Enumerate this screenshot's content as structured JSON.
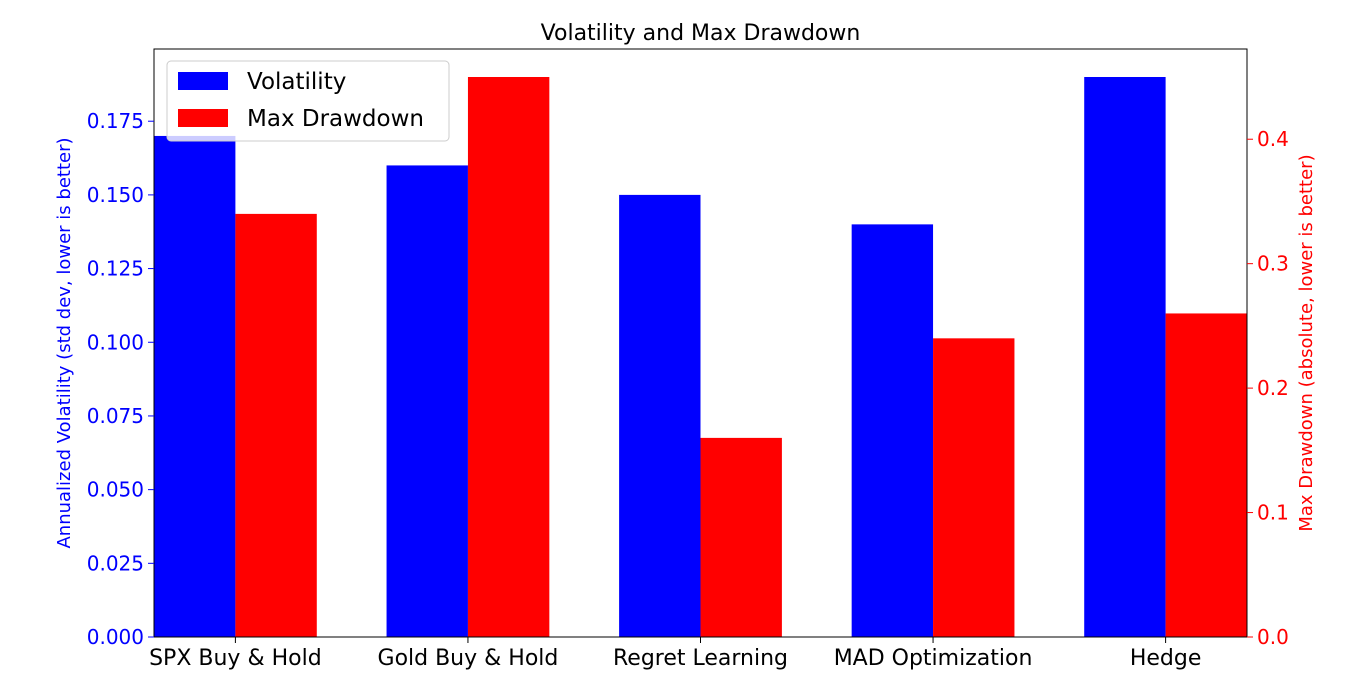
{
  "chart_data": {
    "type": "bar",
    "title": "Volatility and Max Drawdown",
    "categories": [
      "SPX Buy & Hold",
      "Gold Buy & Hold",
      "Regret Learning",
      "MAD Optimization",
      "Hedge"
    ],
    "series": [
      {
        "name": "Volatility",
        "axis": "left",
        "color": "#0000ff",
        "values": [
          0.17,
          0.16,
          0.15,
          0.14,
          0.19
        ]
      },
      {
        "name": "Max Drawdown",
        "axis": "right",
        "color": "#ff0000",
        "values": [
          0.34,
          0.45,
          0.16,
          0.24,
          0.26
        ]
      }
    ],
    "ylabel_left": "Annualized Volatility (std dev, lower is better)",
    "ylabel_right": "Max Drawdown (absolute, lower is better)",
    "ylim_left": [
      0,
      0.1995
    ],
    "ylim_right": [
      0,
      0.4725
    ],
    "yticks_left": [
      "0.000",
      "0.025",
      "0.050",
      "0.075",
      "0.100",
      "0.125",
      "0.150",
      "0.175"
    ],
    "yticks_right": [
      "0.0",
      "0.1",
      "0.2",
      "0.3",
      "0.4"
    ],
    "grid": false,
    "legend_position": "top-left"
  }
}
